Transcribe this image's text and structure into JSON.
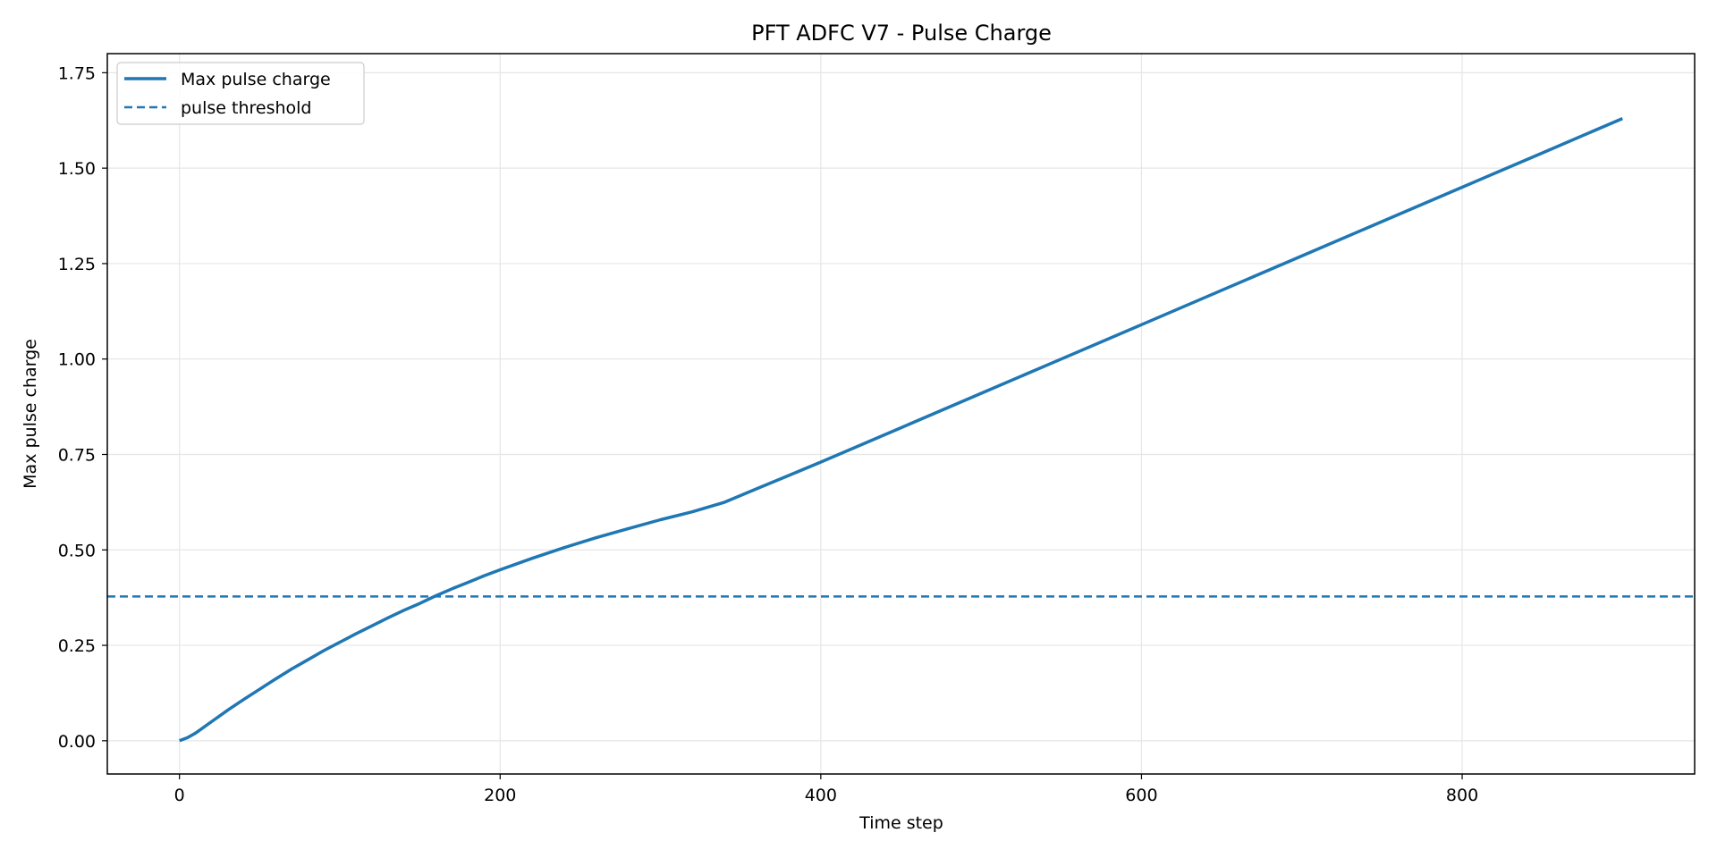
{
  "chart_data": {
    "type": "line",
    "title": "PFT ADFC V7 - Pulse Charge",
    "xlabel": "Time step",
    "ylabel": "Max pulse charge",
    "xlim": [
      -45,
      945
    ],
    "ylim": [
      -0.087,
      1.8
    ],
    "xticks": [
      0,
      200,
      400,
      600,
      800
    ],
    "yticks": [
      0.0,
      0.25,
      0.5,
      0.75,
      1.0,
      1.25,
      1.5,
      1.75
    ],
    "xtick_labels": [
      "0",
      "200",
      "400",
      "600",
      "800"
    ],
    "ytick_labels": [
      "0.00",
      "0.25",
      "0.50",
      "0.75",
      "1.00",
      "1.25",
      "1.50",
      "1.75"
    ],
    "grid": true,
    "legend_position": "top-left",
    "series": [
      {
        "name": "Max pulse charge",
        "style": "solid",
        "color": "#1f77b4",
        "x": [
          0,
          5,
          10,
          20,
          30,
          40,
          50,
          60,
          70,
          80,
          90,
          100,
          110,
          120,
          130,
          140,
          150,
          160,
          170,
          180,
          190,
          200,
          220,
          240,
          260,
          280,
          300,
          320,
          340,
          360,
          380,
          400,
          450,
          500,
          550,
          600,
          650,
          700,
          750,
          800,
          850,
          900
        ],
        "y": [
          0.0,
          0.008,
          0.02,
          0.05,
          0.08,
          0.108,
          0.135,
          0.162,
          0.188,
          0.212,
          0.236,
          0.258,
          0.28,
          0.301,
          0.322,
          0.342,
          0.36,
          0.38,
          0.398,
          0.415,
          0.432,
          0.448,
          0.478,
          0.506,
          0.532,
          0.556,
          0.579,
          0.6,
          0.625,
          0.66,
          0.695,
          0.73,
          0.82,
          0.91,
          1.0,
          1.09,
          1.18,
          1.27,
          1.36,
          1.45,
          1.54,
          1.63
        ]
      },
      {
        "name": "pulse threshold",
        "style": "dashed",
        "color": "#1f77b4",
        "y_constant": 0.378
      }
    ]
  }
}
